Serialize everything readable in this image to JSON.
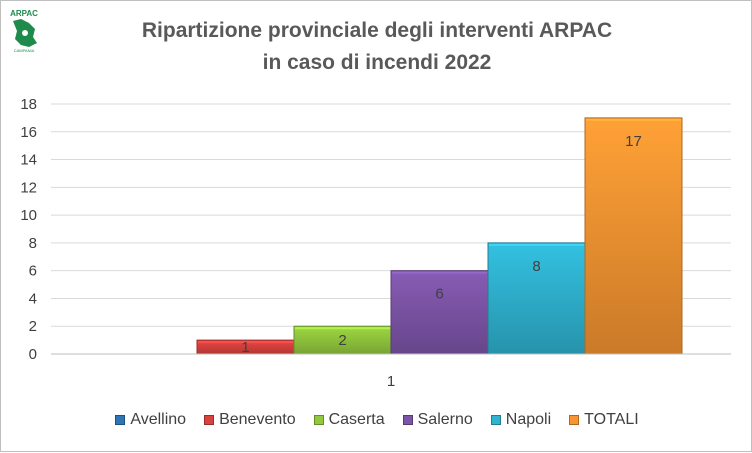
{
  "logo": {
    "text": "ARPAC",
    "subtext": "CAMPANIA"
  },
  "chart_data": {
    "type": "bar",
    "title": "Ripartizione provinciale degli interventi ARPAC in caso di incendi 2022",
    "title_lines": [
      "Ripartizione provinciale degli interventi ARPAC",
      "in caso di incendi 2022"
    ],
    "categories": [
      "1"
    ],
    "series": [
      {
        "name": "Avellino",
        "values": [
          0
        ],
        "color": "#2e75b6",
        "label": ""
      },
      {
        "name": "Benevento",
        "values": [
          1
        ],
        "color": "#d9423f",
        "label": "1"
      },
      {
        "name": "Caserta",
        "values": [
          2
        ],
        "color": "#92c83e",
        "label": "2"
      },
      {
        "name": "Salerno",
        "values": [
          6
        ],
        "color": "#7d55a8",
        "label": "6"
      },
      {
        "name": "Napoli",
        "values": [
          8
        ],
        "color": "#2fb3d1",
        "label": "8"
      },
      {
        "name": "TOTALI",
        "values": [
          17
        ],
        "color": "#f79532",
        "label": "17"
      }
    ],
    "ylim": [
      0,
      18
    ],
    "yticks": [
      "0",
      "2",
      "4",
      "6",
      "8",
      "10",
      "12",
      "14",
      "16",
      "18"
    ],
    "grid": true,
    "legend": "bottom"
  }
}
